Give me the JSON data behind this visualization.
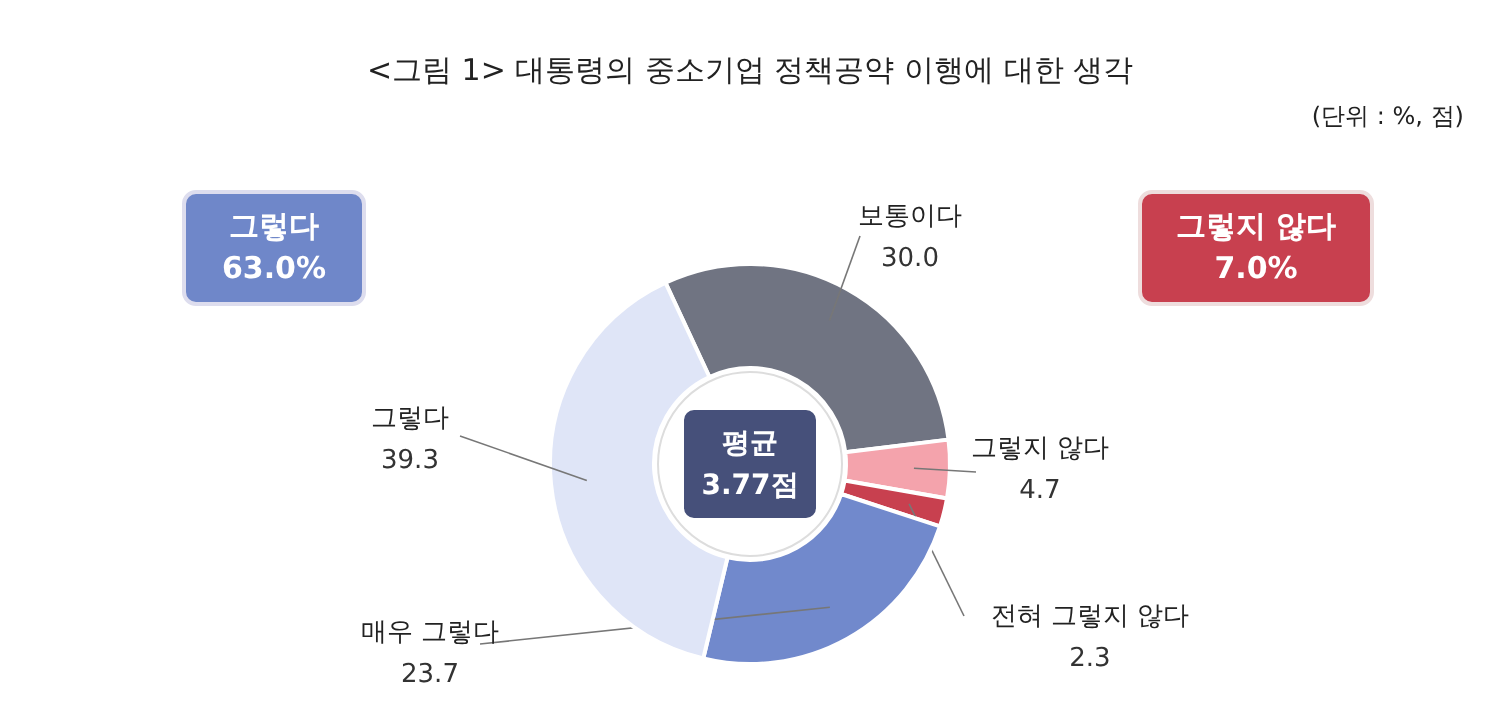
{
  "chart_data": {
    "type": "donut",
    "title": "<그림 1> 대통령의 중소기업 정책공약 이행에 대한 생각",
    "categories": [
      "보통이다",
      "그렇지 않다",
      "전혀 그렇지 않다",
      "매우 그렇다",
      "그렇다"
    ],
    "values": [
      30.0,
      4.7,
      2.3,
      23.7,
      39.3
    ],
    "colors": [
      "#707482",
      "#f4a3ac",
      "#c8404f",
      "#7189cc",
      "#dfe5f7"
    ],
    "value_labels": [
      "30.0",
      "4.7",
      "2.3",
      "23.7",
      "39.3"
    ],
    "annotations": [
      "평균\n3.77점",
      "그렇다\n63.0%",
      "그렇지 않다\n7.0%",
      "(단위 : %, 점)"
    ]
  }
}
